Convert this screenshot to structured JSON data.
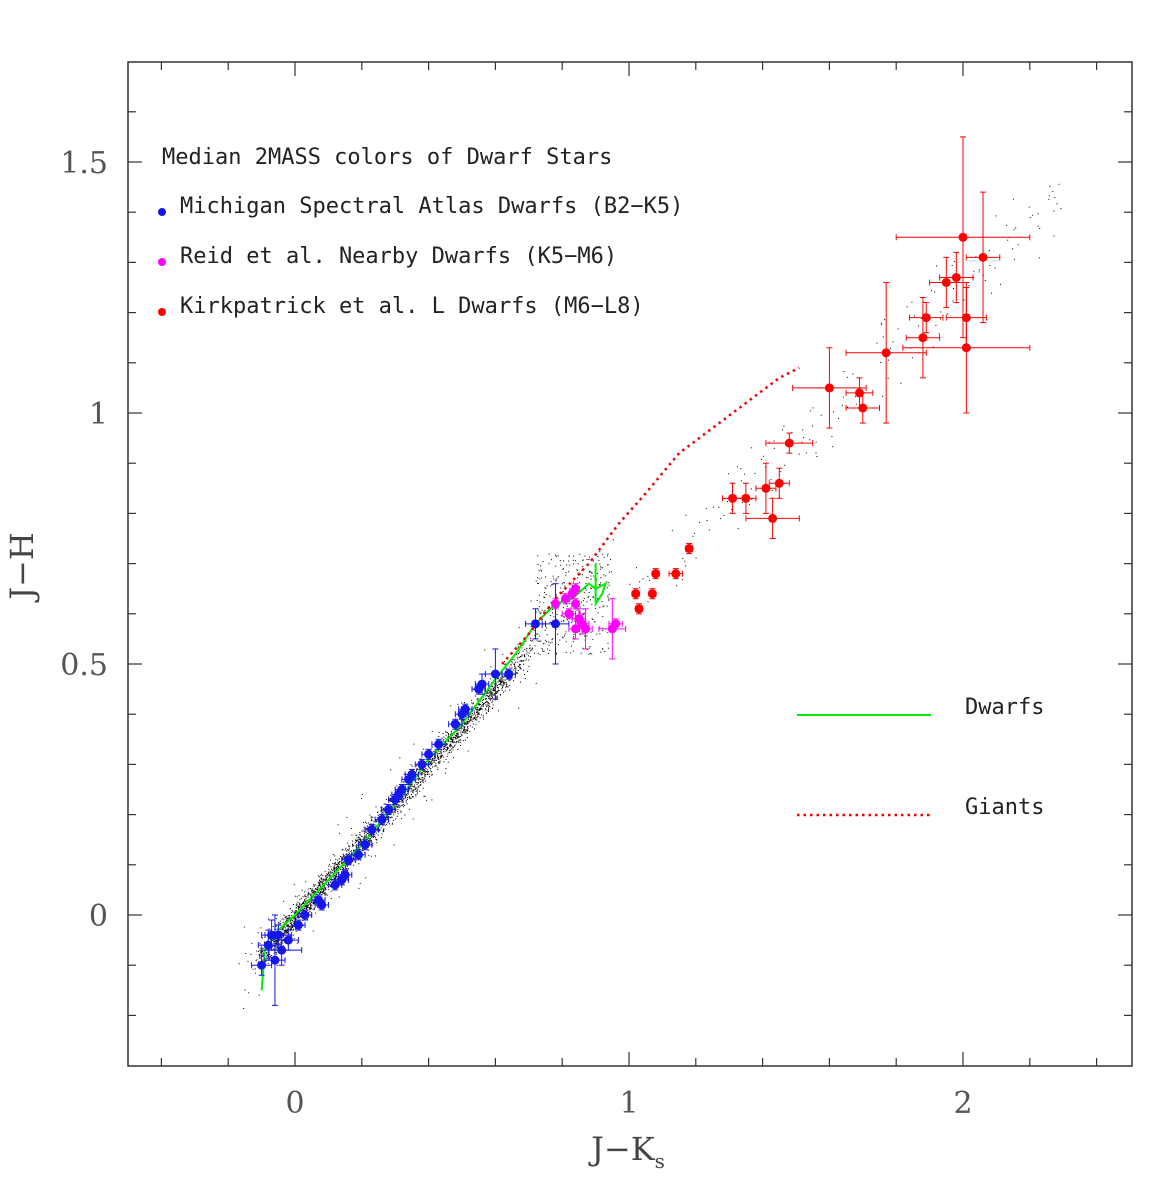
{
  "colors": {
    "axis": "#333333",
    "michigan": "#1515ee",
    "reid": "#ff00ff",
    "kirkpatrick": "#ff0000",
    "dwarf_line": "#00ee00",
    "giant_line": "#ee0000",
    "scatter": "#000000"
  },
  "chart_data": {
    "type": "scatter",
    "xlabel": "J−K",
    "xlabel_sub": "s",
    "ylabel": "J−H",
    "xlim": [
      -0.5,
      2.5
    ],
    "ylim": [
      -0.3,
      1.7
    ],
    "xticks": [
      {
        "value": 0,
        "label": "0"
      },
      {
        "value": 1,
        "label": "1"
      },
      {
        "value": 2,
        "label": "2"
      }
    ],
    "yticks": [
      {
        "value": 0,
        "label": "0"
      },
      {
        "value": 0.5,
        "label": "0.5"
      },
      {
        "value": 1,
        "label": "1"
      },
      {
        "value": 1.5,
        "label": "1.5"
      }
    ],
    "legend_title": "Median 2MASS colors of Dwarf Stars",
    "series": [
      {
        "name": "Michigan Spectral Atlas Dwarfs (B2−K5)",
        "color": "michigan",
        "points": [
          {
            "x": -0.1,
            "y": -0.1,
            "xerr": 0.03,
            "yerr": 0.02
          },
          {
            "x": -0.08,
            "y": -0.06,
            "xerr": 0.03,
            "yerr": 0.03
          },
          {
            "x": -0.07,
            "y": -0.04,
            "xerr": 0.03,
            "yerr": 0.03
          },
          {
            "x": -0.06,
            "y": -0.09,
            "xerr": 0.03,
            "yerr": 0.09
          },
          {
            "x": -0.05,
            "y": -0.04,
            "xerr": 0.04,
            "yerr": 0.02
          },
          {
            "x": -0.04,
            "y": -0.07,
            "xerr": 0.06,
            "yerr": 0.03
          },
          {
            "x": -0.02,
            "y": -0.05,
            "xerr": 0.03,
            "yerr": 0.02
          },
          {
            "x": 0.01,
            "y": -0.02,
            "xerr": 0.02,
            "yerr": 0.01
          },
          {
            "x": 0.03,
            "y": 0.0,
            "xerr": 0.02,
            "yerr": 0.01
          },
          {
            "x": 0.07,
            "y": 0.03,
            "xerr": 0.02,
            "yerr": 0.01
          },
          {
            "x": 0.08,
            "y": 0.02,
            "xerr": 0.02,
            "yerr": 0.01
          },
          {
            "x": 0.12,
            "y": 0.06,
            "xerr": 0.02,
            "yerr": 0.01
          },
          {
            "x": 0.14,
            "y": 0.07,
            "xerr": 0.02,
            "yerr": 0.01
          },
          {
            "x": 0.15,
            "y": 0.08,
            "xerr": 0.02,
            "yerr": 0.01
          },
          {
            "x": 0.16,
            "y": 0.11,
            "xerr": 0.02,
            "yerr": 0.01
          },
          {
            "x": 0.19,
            "y": 0.12,
            "xerr": 0.02,
            "yerr": 0.01
          },
          {
            "x": 0.21,
            "y": 0.14,
            "xerr": 0.02,
            "yerr": 0.01
          },
          {
            "x": 0.23,
            "y": 0.17,
            "xerr": 0.02,
            "yerr": 0.01
          },
          {
            "x": 0.26,
            "y": 0.19,
            "xerr": 0.02,
            "yerr": 0.01
          },
          {
            "x": 0.28,
            "y": 0.21,
            "xerr": 0.02,
            "yerr": 0.01
          },
          {
            "x": 0.3,
            "y": 0.23,
            "xerr": 0.02,
            "yerr": 0.01
          },
          {
            "x": 0.31,
            "y": 0.24,
            "xerr": 0.02,
            "yerr": 0.01
          },
          {
            "x": 0.32,
            "y": 0.25,
            "xerr": 0.02,
            "yerr": 0.01
          },
          {
            "x": 0.34,
            "y": 0.27,
            "xerr": 0.02,
            "yerr": 0.01
          },
          {
            "x": 0.35,
            "y": 0.28,
            "xerr": 0.02,
            "yerr": 0.01
          },
          {
            "x": 0.38,
            "y": 0.3,
            "xerr": 0.02,
            "yerr": 0.01
          },
          {
            "x": 0.4,
            "y": 0.32,
            "xerr": 0.02,
            "yerr": 0.01
          },
          {
            "x": 0.43,
            "y": 0.34,
            "xerr": 0.02,
            "yerr": 0.01
          },
          {
            "x": 0.48,
            "y": 0.38,
            "xerr": 0.02,
            "yerr": 0.01
          },
          {
            "x": 0.5,
            "y": 0.4,
            "xerr": 0.02,
            "yerr": 0.01
          },
          {
            "x": 0.51,
            "y": 0.41,
            "xerr": 0.02,
            "yerr": 0.01
          },
          {
            "x": 0.55,
            "y": 0.45,
            "xerr": 0.02,
            "yerr": 0.01
          },
          {
            "x": 0.56,
            "y": 0.46,
            "xerr": 0.02,
            "yerr": 0.02
          },
          {
            "x": 0.6,
            "y": 0.48,
            "xerr": 0.03,
            "yerr": 0.05
          },
          {
            "x": 0.64,
            "y": 0.48,
            "xerr": 0.02,
            "yerr": 0.01
          },
          {
            "x": 0.72,
            "y": 0.58,
            "xerr": 0.03,
            "yerr": 0.03
          },
          {
            "x": 0.78,
            "y": 0.58,
            "xerr": 0.04,
            "yerr": 0.08
          }
        ]
      },
      {
        "name": "Reid et al. Nearby Dwarfs (K5−M6)",
        "color": "reid",
        "points": [
          {
            "x": 0.78,
            "y": 0.62,
            "xerr": 0.01,
            "yerr": 0.01
          },
          {
            "x": 0.81,
            "y": 0.63,
            "xerr": 0.01,
            "yerr": 0.01
          },
          {
            "x": 0.82,
            "y": 0.6,
            "xerr": 0.02,
            "yerr": 0.01
          },
          {
            "x": 0.83,
            "y": 0.64,
            "xerr": 0.01,
            "yerr": 0.01
          },
          {
            "x": 0.84,
            "y": 0.65,
            "xerr": 0.01,
            "yerr": 0.01
          },
          {
            "x": 0.84,
            "y": 0.62,
            "xerr": 0.01,
            "yerr": 0.01
          },
          {
            "x": 0.85,
            "y": 0.59,
            "xerr": 0.02,
            "yerr": 0.02
          },
          {
            "x": 0.84,
            "y": 0.57,
            "xerr": 0.02,
            "yerr": 0.02
          },
          {
            "x": 0.86,
            "y": 0.58,
            "xerr": 0.02,
            "yerr": 0.02
          },
          {
            "x": 0.87,
            "y": 0.57,
            "xerr": 0.02,
            "yerr": 0.04
          },
          {
            "x": 0.95,
            "y": 0.57,
            "xerr": 0.04,
            "yerr": 0.06
          },
          {
            "x": 0.96,
            "y": 0.58,
            "xerr": 0.02,
            "yerr": 0.01
          }
        ]
      },
      {
        "name": "Kirkpatrick et al. L Dwarfs (M6−L8)",
        "color": "kirkpatrick",
        "points": [
          {
            "x": 1.02,
            "y": 0.64,
            "xerr": 0.01,
            "yerr": 0.01
          },
          {
            "x": 1.03,
            "y": 0.61,
            "xerr": 0.01,
            "yerr": 0.01
          },
          {
            "x": 1.07,
            "y": 0.64,
            "xerr": 0.01,
            "yerr": 0.01
          },
          {
            "x": 1.08,
            "y": 0.68,
            "xerr": 0.01,
            "yerr": 0.01
          },
          {
            "x": 1.14,
            "y": 0.68,
            "xerr": 0.02,
            "yerr": 0.01
          },
          {
            "x": 1.18,
            "y": 0.73,
            "xerr": 0.01,
            "yerr": 0.01
          },
          {
            "x": 1.31,
            "y": 0.83,
            "xerr": 0.03,
            "yerr": 0.03
          },
          {
            "x": 1.35,
            "y": 0.83,
            "xerr": 0.03,
            "yerr": 0.03
          },
          {
            "x": 1.41,
            "y": 0.85,
            "xerr": 0.03,
            "yerr": 0.05
          },
          {
            "x": 1.43,
            "y": 0.79,
            "xerr": 0.08,
            "yerr": 0.04
          },
          {
            "x": 1.45,
            "y": 0.86,
            "xerr": 0.03,
            "yerr": 0.03
          },
          {
            "x": 1.48,
            "y": 0.94,
            "xerr": 0.07,
            "yerr": 0.02
          },
          {
            "x": 1.6,
            "y": 1.05,
            "xerr": 0.11,
            "yerr": 0.08
          },
          {
            "x": 1.69,
            "y": 1.04,
            "xerr": 0.04,
            "yerr": 0.03
          },
          {
            "x": 1.7,
            "y": 1.01,
            "xerr": 0.05,
            "yerr": 0.03
          },
          {
            "x": 1.77,
            "y": 1.12,
            "xerr": 0.12,
            "yerr": 0.14
          },
          {
            "x": 1.88,
            "y": 1.15,
            "xerr": 0.05,
            "yerr": 0.08
          },
          {
            "x": 1.89,
            "y": 1.19,
            "xerr": 0.05,
            "yerr": 0.03
          },
          {
            "x": 1.95,
            "y": 1.26,
            "xerr": 0.05,
            "yerr": 0.05
          },
          {
            "x": 1.98,
            "y": 1.27,
            "xerr": 0.05,
            "yerr": 0.05
          },
          {
            "x": 2.0,
            "y": 1.35,
            "xerr": 0.2,
            "yerr": 0.2
          },
          {
            "x": 2.01,
            "y": 1.19,
            "xerr": 0.06,
            "yerr": 0.06
          },
          {
            "x": 2.01,
            "y": 1.13,
            "xerr": 0.19,
            "yerr": 0.13
          },
          {
            "x": 2.06,
            "y": 1.31,
            "xerr": 0.05,
            "yerr": 0.13
          }
        ]
      }
    ],
    "lines": [
      {
        "name": "Dwarfs",
        "color": "dwarf_line",
        "style": "solid",
        "points": [
          [
            -0.1,
            -0.15
          ],
          [
            -0.09,
            -0.07
          ],
          [
            -0.05,
            -0.03
          ],
          [
            0.0,
            0.0
          ],
          [
            0.1,
            0.07
          ],
          [
            0.2,
            0.14
          ],
          [
            0.3,
            0.22
          ],
          [
            0.4,
            0.31
          ],
          [
            0.5,
            0.38
          ],
          [
            0.6,
            0.47
          ],
          [
            0.66,
            0.52
          ],
          [
            0.72,
            0.58
          ],
          [
            0.78,
            0.62
          ],
          [
            0.83,
            0.63
          ],
          [
            0.88,
            0.66
          ],
          [
            0.9,
            0.65
          ],
          [
            0.93,
            0.66
          ],
          [
            0.92,
            0.64
          ],
          [
            0.9,
            0.62
          ],
          [
            0.9,
            0.7
          ]
        ]
      },
      {
        "name": "Giants",
        "color": "giant_line",
        "style": "dotted",
        "points": [
          [
            0.62,
            0.5
          ],
          [
            0.7,
            0.56
          ],
          [
            0.78,
            0.63
          ],
          [
            0.88,
            0.7
          ],
          [
            0.97,
            0.78
          ],
          [
            1.05,
            0.84
          ],
          [
            1.15,
            0.92
          ],
          [
            1.25,
            0.97
          ],
          [
            1.35,
            1.02
          ],
          [
            1.45,
            1.07
          ],
          [
            1.51,
            1.09
          ]
        ]
      }
    ],
    "background_scatter": "field stars (dense black points along the dwarf sequence)",
    "legend_position": "top-left",
    "line_legend_position": "right"
  }
}
